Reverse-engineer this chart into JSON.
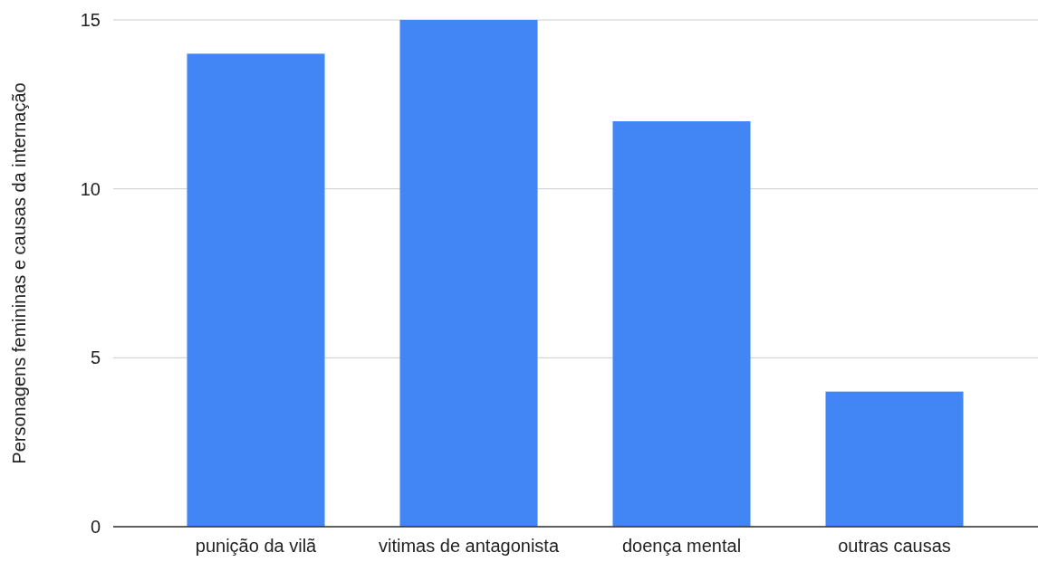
{
  "chart_data": {
    "type": "bar",
    "ylabel": "Personagens femininas e causas da internação",
    "categories": [
      "punição da vilã",
      "vitimas de antagonista",
      "doença mental",
      "outras causas"
    ],
    "values": [
      14,
      15,
      12,
      4
    ],
    "color": "#4285f4",
    "ylim": [
      0,
      15
    ],
    "yticks": [
      0,
      5,
      10,
      15
    ],
    "grid": "y"
  }
}
